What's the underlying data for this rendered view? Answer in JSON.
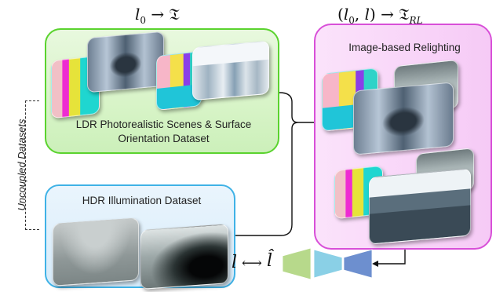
{
  "header_left": {
    "base": "l",
    "sub": "0",
    "arrow": "→",
    "target": "𝔗"
  },
  "header_right": {
    "lparen": "(",
    "base": "l",
    "sub": "0",
    "comma": ",",
    "second": "l",
    "rparen": ")",
    "arrow": "→",
    "target": "𝔗",
    "target_sub": "RL"
  },
  "panels": {
    "ldr": {
      "label_line1": "LDR Photorealistic Scenes & Surface",
      "label_line2": "Orientation Dataset",
      "border_color": "#5ad32e"
    },
    "hdr": {
      "label": "HDR Illumination Dataset",
      "border_color": "#3fb2e6"
    },
    "relight": {
      "label": "Image-based Relighting",
      "border_color": "#d84fd8"
    }
  },
  "side_label": "Uncoupled Datasets",
  "bottom": {
    "l_symbol": "l",
    "arrow": "⟷",
    "l_hat": "l̂"
  },
  "network_colors": [
    "#b7d98b",
    "#8ad0e6",
    "#6d8fcf"
  ]
}
